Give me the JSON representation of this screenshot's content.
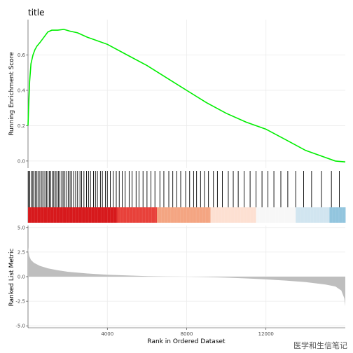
{
  "chart_data": {
    "type": "line",
    "title": "title",
    "xlabel": "Rank in Ordered Dataset",
    "x_ticks": [
      "4000",
      "8000",
      "12000"
    ],
    "x_tick_values": [
      4000,
      8000,
      12000
    ],
    "xlim": [
      0,
      16000
    ],
    "panels": [
      {
        "name": "running-enrichment",
        "type": "line",
        "ylabel": "Running Enrichment Score",
        "y_ticks": [
          "0.0",
          "0.2",
          "0.4",
          "0.6"
        ],
        "y_tick_values": [
          0.0,
          0.2,
          0.4,
          0.6
        ],
        "ylim": [
          -0.04,
          0.8
        ],
        "color": "#00EE00",
        "x": [
          0,
          30,
          80,
          150,
          250,
          350,
          450,
          600,
          800,
          1000,
          1200,
          1500,
          1800,
          2100,
          2500,
          3000,
          3500,
          4000,
          5000,
          6000,
          7000,
          8000,
          9000,
          10000,
          11000,
          12000,
          13000,
          14000,
          15000,
          15500,
          16000
        ],
        "y": [
          0.2,
          0.3,
          0.45,
          0.55,
          0.6,
          0.63,
          0.65,
          0.67,
          0.7,
          0.73,
          0.74,
          0.74,
          0.745,
          0.735,
          0.725,
          0.7,
          0.68,
          0.66,
          0.6,
          0.54,
          0.47,
          0.4,
          0.33,
          0.27,
          0.22,
          0.18,
          0.12,
          0.06,
          0.02,
          0.0,
          -0.005
        ]
      },
      {
        "name": "hit-positions",
        "type": "rug",
        "hits_x": [
          30,
          90,
          160,
          240,
          300,
          380,
          450,
          530,
          600,
          700,
          760,
          850,
          930,
          1000,
          1080,
          1150,
          1230,
          1300,
          1380,
          1450,
          1530,
          1610,
          1700,
          1770,
          1860,
          1950,
          2030,
          2120,
          2200,
          2300,
          2400,
          2500,
          2620,
          2700,
          2820,
          2950,
          3050,
          3150,
          3300,
          3400,
          3500,
          3650,
          3750,
          3900,
          4000,
          4150,
          4300,
          4450,
          4600,
          4750,
          4900,
          5100,
          5250,
          5450,
          5600,
          5800,
          6000,
          6200,
          6400,
          6650,
          6850,
          7100,
          7300,
          7500,
          7700,
          7950,
          8150,
          8350,
          8500,
          8700,
          8900,
          9100,
          9350,
          9550,
          9800,
          10100,
          10350,
          10600,
          10900,
          11200,
          11500,
          11800,
          12100,
          12400,
          12750,
          13100,
          13500,
          13900,
          14300,
          14800,
          15300,
          15700
        ]
      },
      {
        "name": "rank-color-bar",
        "type": "heatmap",
        "color_stops": [
          {
            "x": 0,
            "color": "#D7191C"
          },
          {
            "x": 4500,
            "color": "#E8413A"
          },
          {
            "x": 6500,
            "color": "#F4A582"
          },
          {
            "x": 9200,
            "color": "#FDE0D2"
          },
          {
            "x": 11500,
            "color": "#F7F7F7"
          },
          {
            "x": 13500,
            "color": "#D1E5F0"
          },
          {
            "x": 15200,
            "color": "#92C5DE"
          },
          {
            "x": 16000,
            "color": "#4393C3"
          }
        ]
      },
      {
        "name": "ranked-list-metric",
        "type": "area",
        "ylabel": "Ranked List Metric",
        "y_ticks": [
          "-5.0",
          "-2.5",
          "0.0",
          "2.5",
          "5.0"
        ],
        "y_tick_values": [
          -5.0,
          -2.5,
          0.0,
          2.5,
          5.0
        ],
        "ylim": [
          -5.2,
          5.2
        ],
        "fill": "#BEBEBE",
        "x": [
          0,
          20,
          60,
          150,
          300,
          600,
          1000,
          1500,
          2000,
          3000,
          4000,
          5000,
          6000,
          7000,
          8000,
          9000,
          10000,
          11000,
          12000,
          13000,
          14000,
          15000,
          15500,
          15800,
          15950,
          16000
        ],
        "y": [
          3.0,
          2.6,
          2.1,
          1.7,
          1.4,
          1.1,
          0.85,
          0.65,
          0.5,
          0.32,
          0.2,
          0.12,
          0.06,
          0.02,
          0.0,
          -0.04,
          -0.1,
          -0.18,
          -0.28,
          -0.4,
          -0.55,
          -0.8,
          -1.0,
          -1.4,
          -2.2,
          -3.0
        ]
      }
    ]
  },
  "watermark": "医学和生信笔记"
}
